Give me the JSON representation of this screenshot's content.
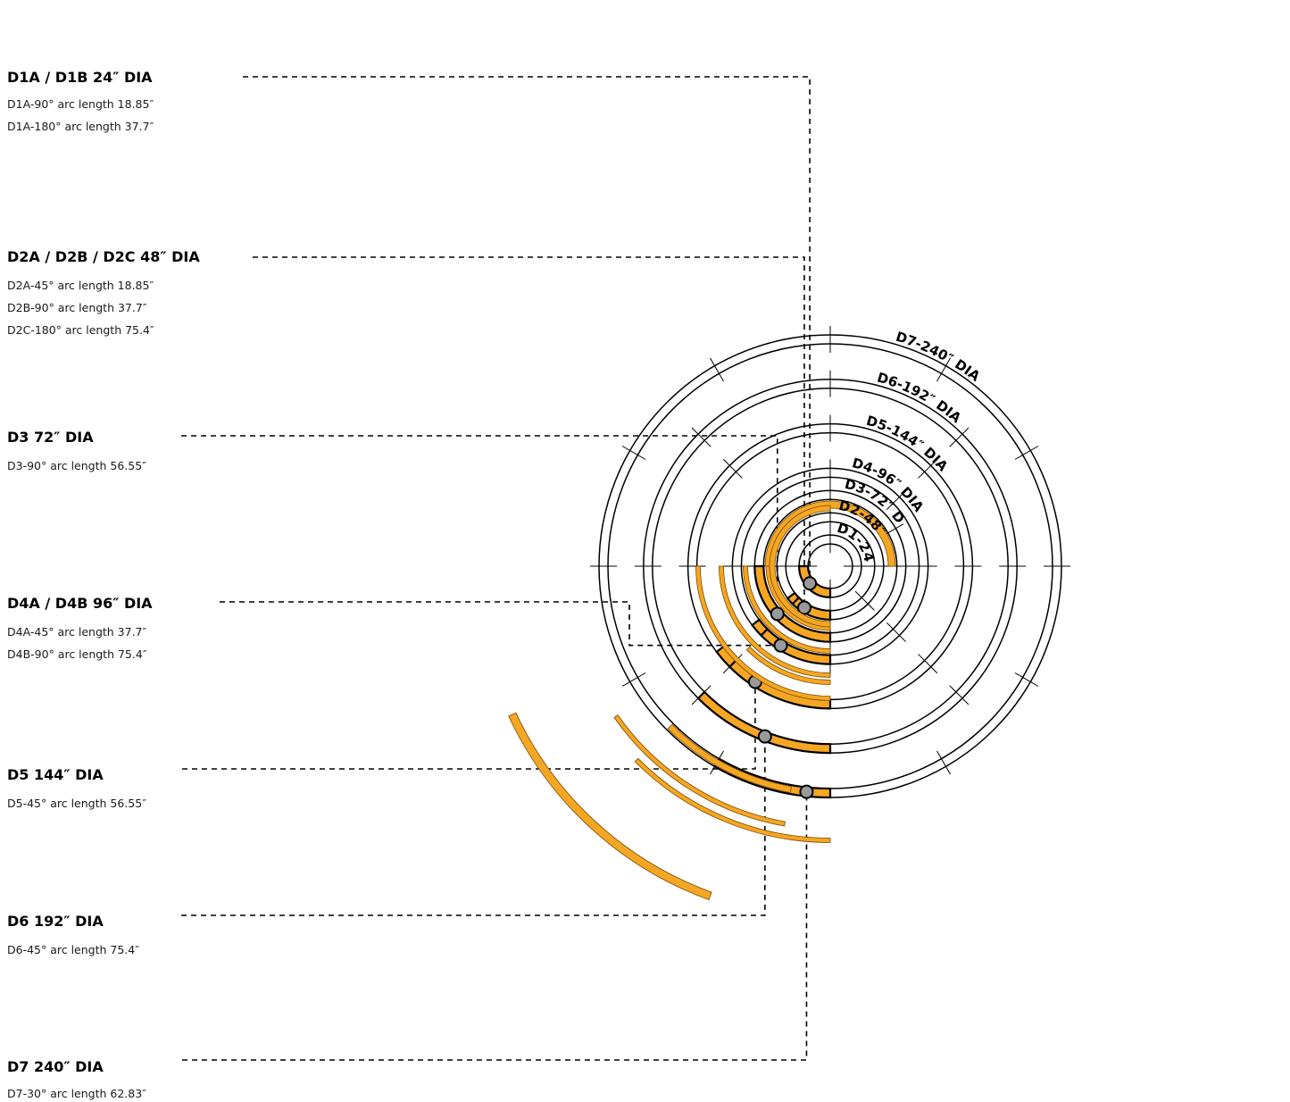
{
  "parts": [
    {
      "title": "D1A / D1B 24″ DIA",
      "details": [
        "D1A-90° arc length 18.85″",
        "D1A-180° arc length 37.7″"
      ]
    },
    {
      "title": "D2A / D2B / D2C 48″ DIA",
      "details": [
        "D2A-45° arc length 18.85″",
        "D2B-90° arc length 37.7″",
        "D2C-180° arc length 75.4″"
      ]
    },
    {
      "title": "D3 72″ DIA",
      "details": [
        "D3-90° arc length 56.55″"
      ]
    },
    {
      "title": "D4A / D4B 96″ DIA",
      "details": [
        "D4A-45° arc length 37.7″",
        "D4B-90° arc length 75.4″"
      ]
    },
    {
      "title": "D5 144″ DIA",
      "details": [
        "D5-45° arc length 56.55″"
      ]
    },
    {
      "title": "D6 192″ DIA",
      "details": [
        "D6-45° arc length 75.4″"
      ]
    },
    {
      "title": "D7 240″ DIA",
      "details": [
        "D7-30° arc length 62.83″"
      ]
    }
  ],
  "rings": [
    {
      "label": "D1-24″ DIA",
      "diameter_in": 24
    },
    {
      "label": "D2-48″ DIA",
      "diameter_in": 48
    },
    {
      "label": "D3-72″ DIA",
      "diameter_in": 72
    },
    {
      "label": "D4-96″ DIA",
      "diameter_in": 96
    },
    {
      "label": "D5-144″ DIA",
      "diameter_in": 144
    },
    {
      "label": "D6-192″ DIA",
      "diameter_in": 192
    },
    {
      "label": "D7-240″ DIA",
      "diameter_in": 240
    }
  ],
  "colors": {
    "segment": "#f5a623",
    "pin": "#9a9a9a",
    "line": "#000000"
  }
}
